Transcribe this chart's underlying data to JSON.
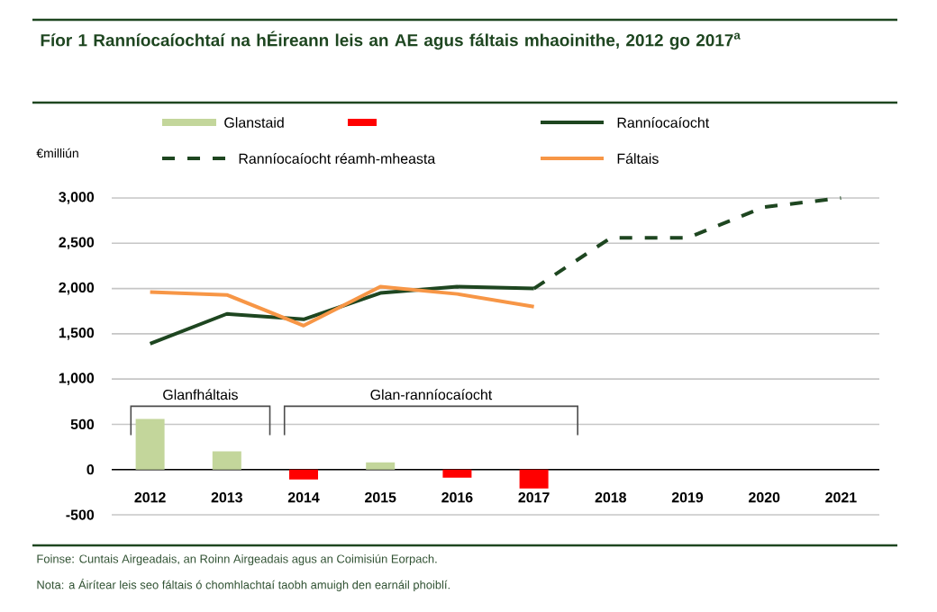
{
  "chart_data": {
    "type": "line",
    "title": "Fíor 1   Ranníocaíochtaí na hÉireann leis an AE agus fáltais mhaoinithe, 2012 go 2017$^{a}$",
    "ylabel": "€milliún",
    "categories": [
      "2012",
      "2013",
      "2014",
      "2015",
      "2016",
      "2017",
      "2018",
      "2019",
      "2020",
      "2021"
    ],
    "series": [
      {
        "name": "Glanstaid",
        "type": "bar",
        "colors": [
          "#c3d69b",
          "#c3d69b",
          "#ff0000",
          "#c3d69b",
          "#ff0000",
          "#ff0000",
          "#c3d69b",
          "#c3d69b",
          "#c3d69b",
          "#c3d69b"
        ],
        "values": [
          560,
          200,
          -110,
          80,
          -90,
          -210,
          null,
          null,
          null,
          null
        ]
      },
      {
        "name": "Ranníocaíocht",
        "color": "#1e4620",
        "values": [
          1390,
          1720,
          1660,
          1950,
          2020,
          2000,
          null,
          null,
          null,
          null
        ]
      },
      {
        "name": "Ranníocaíocht réamh-mheasta",
        "color": "#1e4620",
        "line_style": "dashed",
        "values": [
          null,
          null,
          null,
          null,
          null,
          2000,
          2560,
          2560,
          2900,
          3000
        ]
      },
      {
        "name": "Fáltais",
        "color": "#f79646",
        "values": [
          1960,
          1930,
          1590,
          2020,
          1940,
          1800,
          null,
          null,
          null,
          null
        ]
      }
    ],
    "ylim": [
      -500,
      3000
    ],
    "yticks": [
      -500,
      0,
      500,
      {
        "value": 1000,
        "label": "1,000"
      },
      {
        "value": 1500,
        "label": "1,500"
      },
      {
        "value": 2000,
        "label": "2,000"
      },
      {
        "value": 2500,
        "label": "2,500"
      },
      {
        "value": 3000,
        "label": "3,000"
      }
    ],
    "grid": "y",
    "legend": "top",
    "annotations": [
      "Glanfháltais",
      "Glan-ranníocaíocht",
      "Foinse:   Cuntais Airgeadais, an Roinn Airgeadais agus an Coimisiún Eorpach.",
      "Nota:   a   Áirítear leis seo fáltais ó chomhlachtaí taobh amuigh den earnáil phoiblí."
    ]
  }
}
